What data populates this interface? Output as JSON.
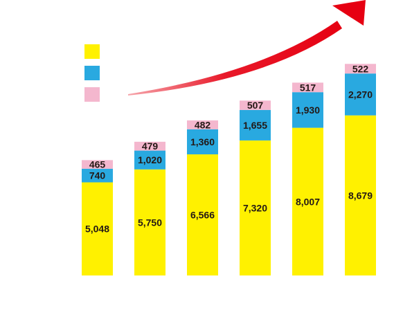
{
  "chart_data": {
    "type": "bar",
    "stacked": true,
    "title": "",
    "xlabel": "",
    "ylabel": "",
    "categories": [
      "",
      "",
      "",
      "",
      "",
      ""
    ],
    "series": [
      {
        "values": [
          5048,
          5750,
          6566,
          7320,
          8007,
          8679
        ],
        "labels": [
          "5,048",
          "5,750",
          "6,566",
          "7,320",
          "8,007",
          "8,679"
        ],
        "color": "#FFF100"
      },
      {
        "values": [
          740,
          1020,
          1360,
          1655,
          1930,
          2270
        ],
        "labels": [
          "740",
          "1,020",
          "1,360",
          "1,655",
          "1,930",
          "2,270"
        ],
        "color": "#29A9E0"
      },
      {
        "values": [
          465,
          479,
          482,
          507,
          517,
          522
        ],
        "labels": [
          "465",
          "479",
          "482",
          "507",
          "517",
          "522"
        ],
        "color": "#F4B7CE"
      }
    ],
    "legend": {
      "placement": "top-left"
    },
    "trend_arrow": {
      "color": "#E60012"
    },
    "grid": false
  }
}
